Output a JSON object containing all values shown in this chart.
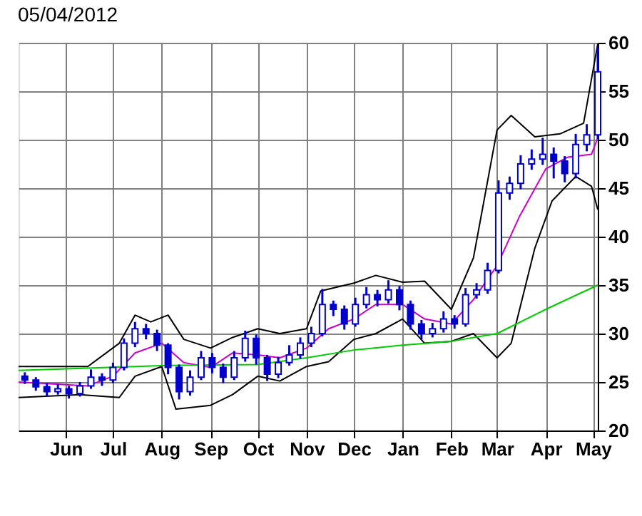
{
  "chart_data": {
    "type": "candlestick",
    "title": "05/04/2012",
    "color": "#0000cc",
    "x": [
      "2011-05-06",
      "2011-05-13",
      "2011-05-20",
      "2011-05-27",
      "2011-06-03",
      "2011-06-10",
      "2011-06-17",
      "2011-06-24",
      "2011-07-01",
      "2011-07-08",
      "2011-07-15",
      "2011-07-22",
      "2011-07-29",
      "2011-08-05",
      "2011-08-12",
      "2011-08-19",
      "2011-08-26",
      "2011-09-02",
      "2011-09-09",
      "2011-09-16",
      "2011-09-23",
      "2011-09-30",
      "2011-10-07",
      "2011-10-14",
      "2011-10-21",
      "2011-10-28",
      "2011-11-04",
      "2011-11-11",
      "2011-11-18",
      "2011-11-25",
      "2011-12-02",
      "2011-12-09",
      "2011-12-16",
      "2011-12-23",
      "2011-12-30",
      "2012-01-06",
      "2012-01-13",
      "2012-01-20",
      "2012-01-27",
      "2012-02-03",
      "2012-02-10",
      "2012-02-17",
      "2012-02-24",
      "2012-03-02",
      "2012-03-09",
      "2012-03-16",
      "2012-03-23",
      "2012-03-30",
      "2012-04-06",
      "2012-04-13",
      "2012-04-20",
      "2012-04-27",
      "2012-05-04"
    ],
    "ohlc": [
      [
        25.6,
        26.0,
        24.8,
        25.2
      ],
      [
        25.2,
        25.5,
        24.1,
        24.5
      ],
      [
        24.5,
        24.9,
        23.6,
        24.0
      ],
      [
        24.0,
        24.8,
        23.7,
        24.3
      ],
      [
        24.3,
        24.6,
        23.3,
        23.8
      ],
      [
        23.8,
        25.0,
        23.5,
        24.6
      ],
      [
        24.6,
        26.3,
        24.3,
        25.5
      ],
      [
        25.5,
        25.9,
        24.6,
        25.2
      ],
      [
        25.2,
        27.0,
        24.9,
        26.5
      ],
      [
        26.5,
        29.5,
        26.2,
        29.0
      ],
      [
        29.0,
        31.2,
        28.6,
        30.5
      ],
      [
        30.5,
        31.0,
        29.4,
        30.0
      ],
      [
        30.0,
        30.4,
        28.2,
        28.8
      ],
      [
        28.8,
        29.0,
        25.8,
        26.5
      ],
      [
        26.5,
        26.8,
        23.2,
        24.0
      ],
      [
        24.0,
        26.2,
        23.6,
        25.5
      ],
      [
        25.5,
        28.2,
        25.2,
        27.5
      ],
      [
        27.5,
        28.0,
        25.9,
        26.5
      ],
      [
        26.5,
        26.9,
        24.9,
        25.5
      ],
      [
        25.5,
        28.2,
        25.2,
        27.5
      ],
      [
        27.5,
        30.3,
        27.1,
        29.5
      ],
      [
        29.5,
        29.9,
        26.8,
        27.5
      ],
      [
        27.5,
        27.8,
        25.1,
        25.8
      ],
      [
        25.8,
        27.6,
        25.4,
        27.0
      ],
      [
        27.0,
        28.8,
        26.7,
        27.8
      ],
      [
        27.8,
        29.6,
        27.4,
        29.0
      ],
      [
        29.0,
        30.7,
        28.6,
        30.0
      ],
      [
        30.0,
        34.6,
        29.7,
        33.0
      ],
      [
        33.0,
        33.4,
        31.8,
        32.5
      ],
      [
        32.5,
        32.9,
        30.4,
        31.0
      ],
      [
        31.0,
        33.7,
        30.7,
        33.0
      ],
      [
        33.0,
        34.8,
        32.6,
        34.0
      ],
      [
        34.0,
        34.5,
        32.8,
        33.5
      ],
      [
        33.5,
        35.5,
        33.1,
        34.5
      ],
      [
        34.5,
        34.9,
        32.4,
        33.0
      ],
      [
        33.0,
        33.4,
        30.4,
        31.0
      ],
      [
        31.0,
        31.4,
        29.4,
        30.0
      ],
      [
        30.0,
        31.1,
        29.6,
        30.5
      ],
      [
        30.5,
        32.3,
        30.1,
        31.5
      ],
      [
        31.5,
        31.9,
        30.5,
        31.0
      ],
      [
        31.0,
        34.7,
        30.7,
        34.0
      ],
      [
        34.0,
        35.2,
        33.6,
        34.5
      ],
      [
        34.5,
        37.3,
        34.1,
        36.5
      ],
      [
        36.5,
        45.8,
        36.2,
        44.5
      ],
      [
        44.5,
        46.2,
        43.8,
        45.5
      ],
      [
        45.5,
        48.4,
        44.9,
        47.5
      ],
      [
        47.5,
        49.0,
        46.9,
        48.0
      ],
      [
        48.0,
        50.2,
        47.4,
        48.5
      ],
      [
        48.5,
        49.2,
        46.0,
        47.8
      ],
      [
        47.8,
        48.3,
        45.6,
        46.5
      ],
      [
        46.5,
        50.6,
        46.0,
        49.5
      ],
      [
        49.5,
        51.6,
        48.8,
        50.5
      ],
      [
        50.5,
        59.6,
        50.1,
        57.0
      ]
    ],
    "series": [
      {
        "type": "line",
        "color": "#000000",
        "x": [
          "2011-05-02",
          "2011-05-27",
          "2011-06-15",
          "2011-07-05",
          "2011-07-15",
          "2011-07-25",
          "2011-08-05",
          "2011-08-15",
          "2011-09-01",
          "2011-09-15",
          "2011-10-01",
          "2011-10-15",
          "2011-11-01",
          "2011-11-10",
          "2011-12-01",
          "2011-12-15",
          "2012-01-01",
          "2012-01-15",
          "2012-02-01",
          "2012-02-15",
          "2012-03-01",
          "2012-03-10",
          "2012-03-25",
          "2012-04-10",
          "2012-04-25",
          "2012-05-04"
        ],
        "values": [
          26.6,
          26.6,
          26.6,
          29.0,
          31.9,
          31.2,
          31.9,
          29.4,
          28.5,
          29.6,
          30.5,
          30.0,
          30.5,
          34.4,
          35.2,
          36.0,
          35.3,
          35.4,
          32.5,
          37.8,
          51.0,
          52.5,
          50.3,
          50.6,
          51.7,
          59.9
        ]
      },
      {
        "type": "line",
        "color": "#000000",
        "x": [
          "2011-05-02",
          "2011-06-10",
          "2011-07-05",
          "2011-07-15",
          "2011-08-01",
          "2011-08-10",
          "2011-09-01",
          "2011-09-15",
          "2011-10-01",
          "2011-10-15",
          "2011-11-01",
          "2011-11-15",
          "2011-12-01",
          "2011-12-15",
          "2012-01-01",
          "2012-01-15",
          "2012-02-01",
          "2012-02-15",
          "2012-03-01",
          "2012-03-10",
          "2012-03-25",
          "2012-04-05",
          "2012-04-20",
          "2012-04-30",
          "2012-05-04"
        ],
        "values": [
          23.4,
          23.7,
          23.4,
          25.6,
          26.6,
          22.2,
          22.6,
          23.7,
          25.6,
          25.1,
          26.6,
          27.1,
          29.4,
          30.0,
          31.5,
          29.0,
          29.2,
          30.0,
          27.5,
          29.0,
          38.8,
          43.7,
          46.2,
          45.2,
          42.8
        ]
      },
      {
        "type": "line",
        "color": "#cc00cc",
        "x": [
          "2011-05-02",
          "2011-06-15",
          "2011-07-01",
          "2011-07-15",
          "2011-08-01",
          "2011-08-15",
          "2011-09-01",
          "2011-09-15",
          "2011-10-01",
          "2011-10-15",
          "2011-11-01",
          "2011-11-15",
          "2011-12-01",
          "2011-12-15",
          "2012-01-01",
          "2012-01-15",
          "2012-02-01",
          "2012-02-15",
          "2012-03-01",
          "2012-03-15",
          "2012-04-01",
          "2012-04-15",
          "2012-04-30",
          "2012-05-04"
        ],
        "values": [
          25.0,
          24.6,
          25.6,
          28.0,
          29.0,
          27.0,
          26.5,
          28.0,
          27.8,
          27.5,
          28.5,
          30.5,
          31.5,
          33.0,
          33.0,
          31.5,
          31.0,
          33.5,
          37.0,
          42.0,
          47.0,
          48.2,
          48.5,
          50.2
        ]
      },
      {
        "type": "line",
        "color": "#00cc00",
        "x": [
          "2011-05-02",
          "2011-08-01",
          "2011-10-01",
          "2011-11-01",
          "2011-12-01",
          "2012-01-01",
          "2012-02-01",
          "2012-03-01",
          "2012-04-01",
          "2012-05-04"
        ],
        "values": [
          26.2,
          26.7,
          26.8,
          27.5,
          28.3,
          28.8,
          29.2,
          30.0,
          32.5,
          35.0
        ]
      }
    ],
    "xlim": [
      "2011-05-02",
      "2012-05-04"
    ],
    "xticks": [
      {
        "value": "2011-06-01",
        "label": "Jun"
      },
      {
        "value": "2011-07-01",
        "label": "Jul"
      },
      {
        "value": "2011-08-01",
        "label": "Aug"
      },
      {
        "value": "2011-09-01",
        "label": "Sep"
      },
      {
        "value": "2011-10-01",
        "label": "Oct"
      },
      {
        "value": "2011-11-01",
        "label": "Nov"
      },
      {
        "value": "2011-12-01",
        "label": "Dec"
      },
      {
        "value": "2012-01-01",
        "label": "Jan"
      },
      {
        "value": "2012-02-01",
        "label": "Feb"
      },
      {
        "value": "2012-03-01",
        "label": "Mar"
      },
      {
        "value": "2012-04-01",
        "label": "Apr"
      },
      {
        "value": "2012-05-01",
        "label": "May"
      }
    ],
    "ylim": [
      20,
      60
    ],
    "yticks": [
      20,
      25,
      30,
      35,
      40,
      45,
      50,
      55,
      60
    ],
    "grid": true
  }
}
